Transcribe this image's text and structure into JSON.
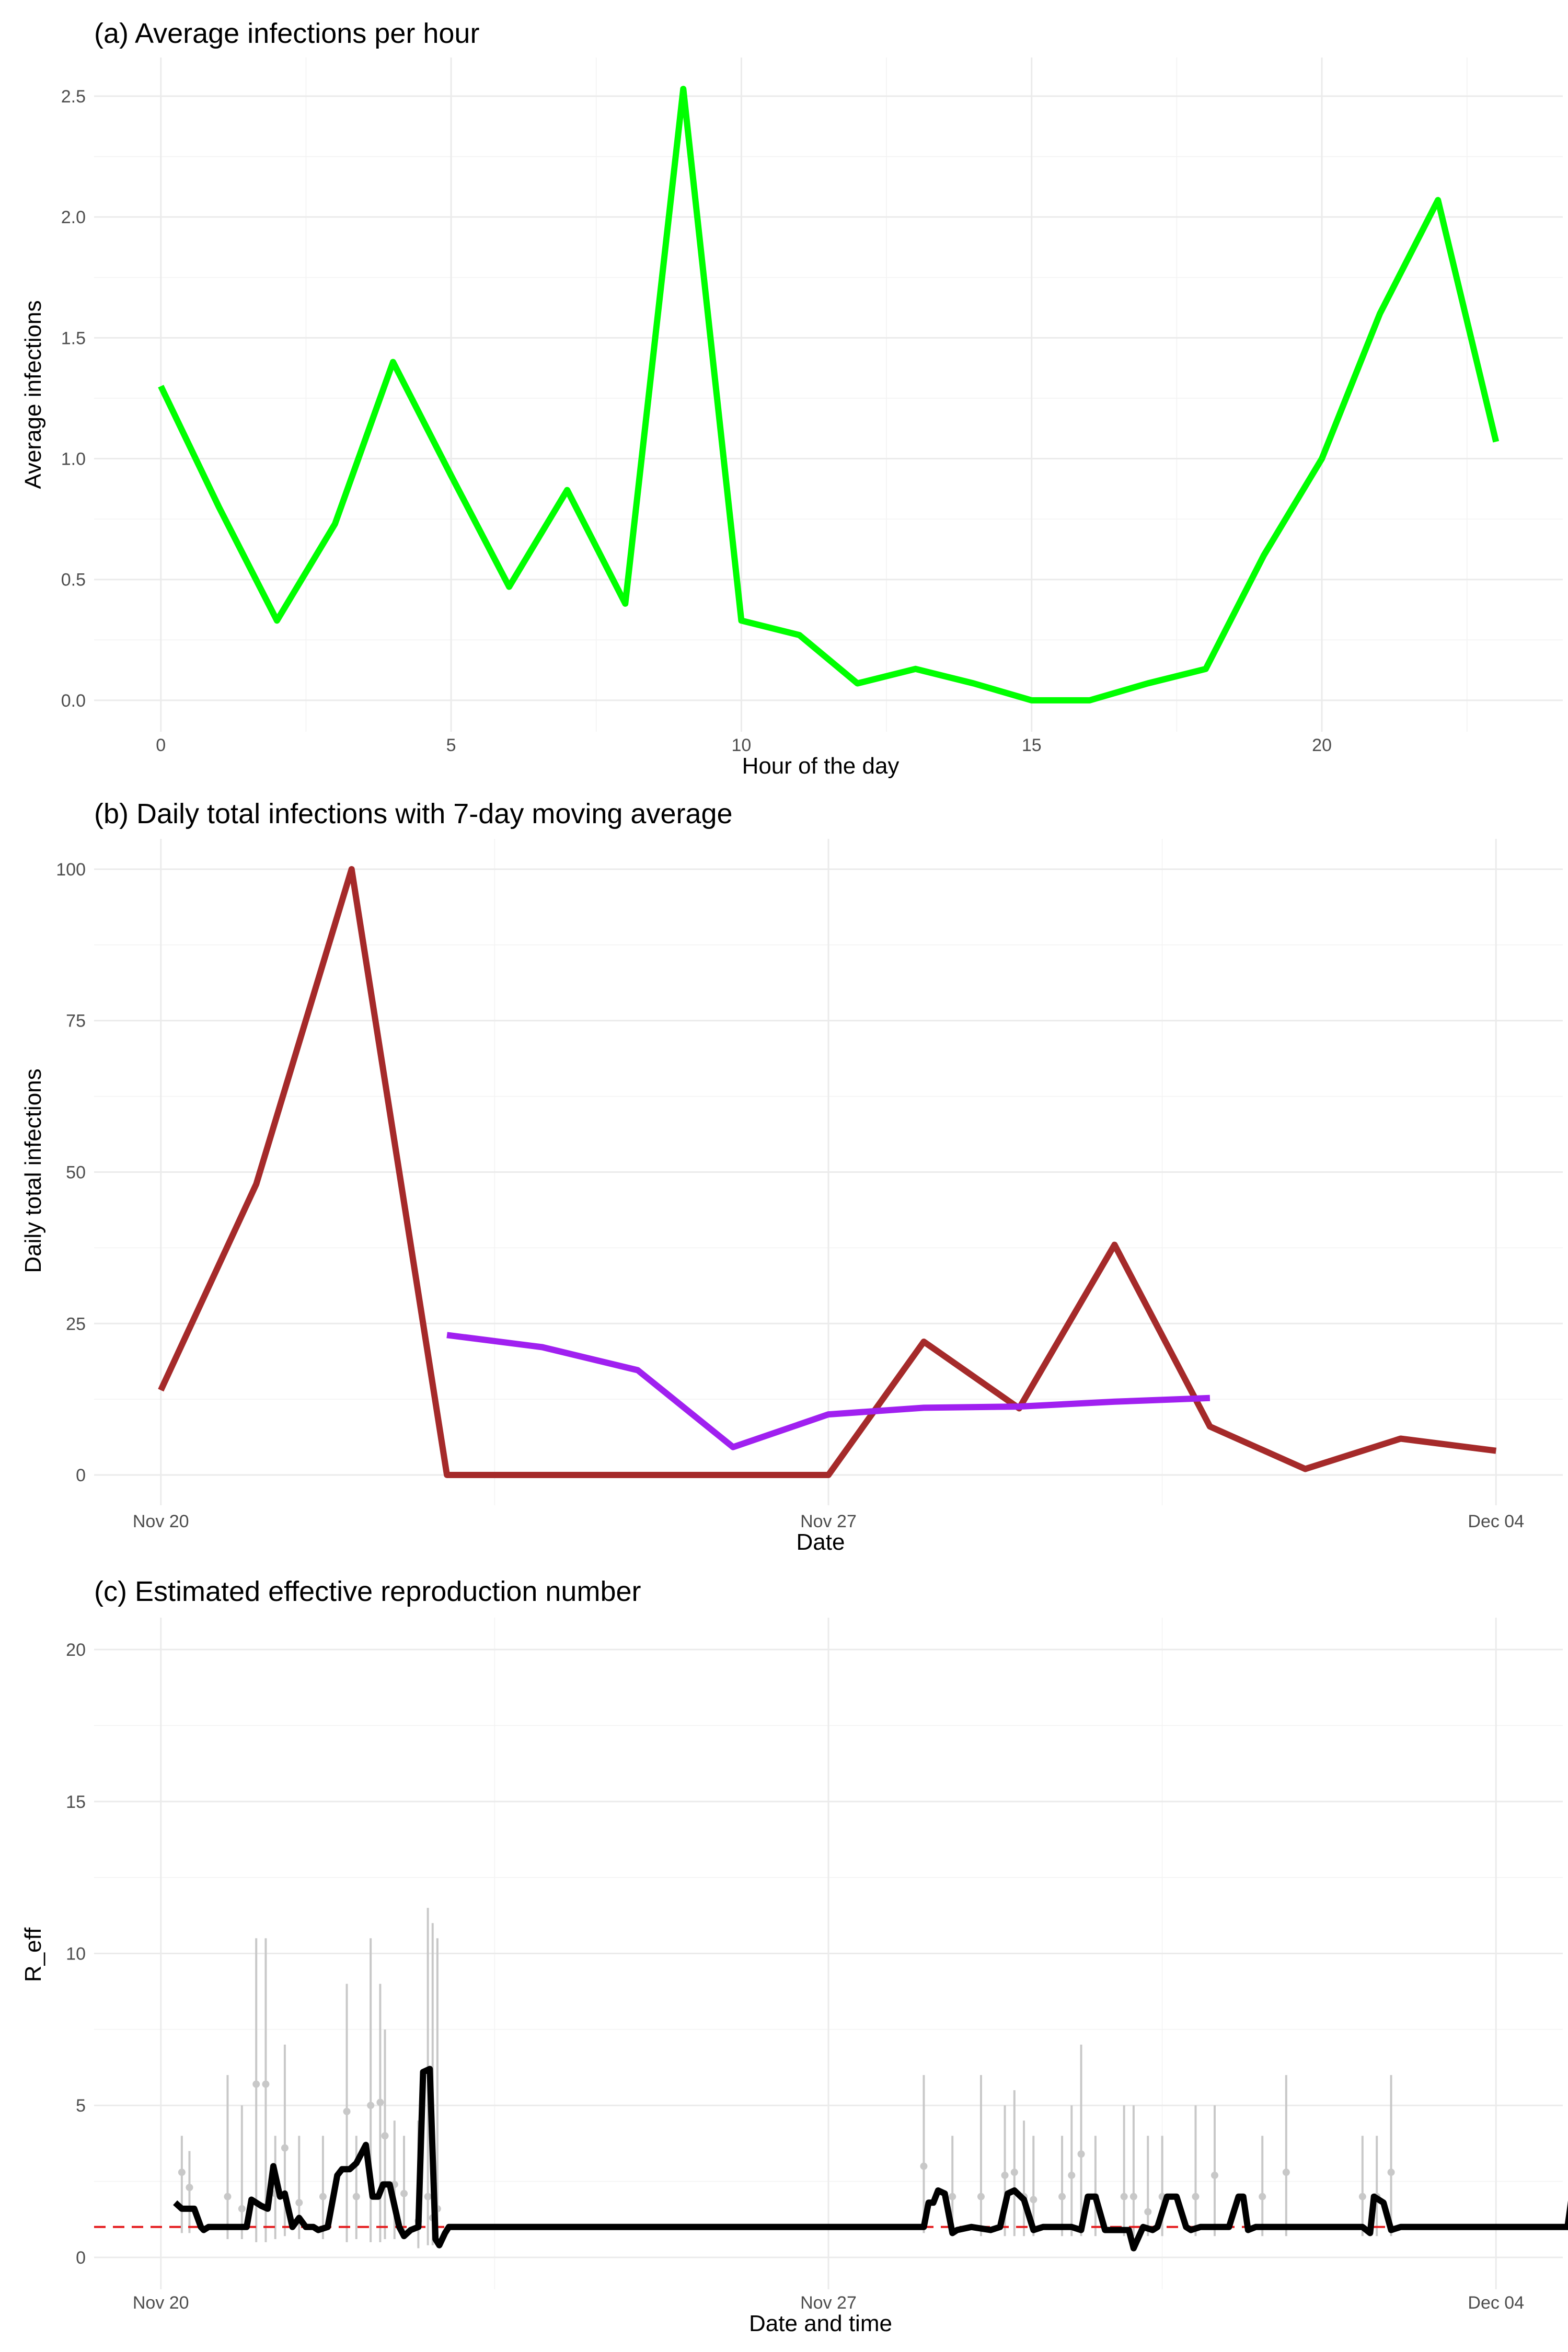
{
  "chart_data": [
    {
      "type": "line",
      "title": "(a) Average infections per hour",
      "xlabel": "Hour of the day",
      "ylabel": "Average infections",
      "xlim": [
        -1.15,
        24.15
      ],
      "ylim": [
        -0.13,
        2.66
      ],
      "xticks": [
        0,
        5,
        10,
        15,
        20
      ],
      "yticks": [
        0,
        0.5,
        1,
        1.5,
        2,
        2.5
      ],
      "ytick_labels": [
        "0.0",
        "0.5",
        "1.0",
        "1.5",
        "2.0",
        "2.5"
      ],
      "grid": true,
      "series": [
        {
          "color": "#00ff00",
          "x": [
            0,
            1,
            2,
            3,
            4,
            5,
            6,
            7,
            8,
            9,
            10,
            11,
            12,
            13,
            14,
            15,
            16,
            17,
            18,
            19,
            20,
            21,
            22,
            23
          ],
          "y": [
            1.3,
            0.8,
            0.33,
            0.73,
            1.4,
            0.93,
            0.47,
            0.87,
            0.4,
            2.53,
            0.33,
            0.27,
            0.07,
            0.13,
            0.07,
            0.0,
            0.0,
            0.07,
            0.13,
            0.6,
            1.0,
            1.6,
            2.07,
            1.07
          ]
        }
      ]
    },
    {
      "type": "line",
      "title": "(b) Daily total infections with 7-day moving average",
      "xlabel": "Date",
      "ylabel": "Daily total infections",
      "xlim": [
        -0.7,
        14.7
      ],
      "ylim": [
        -5,
        105
      ],
      "xticks": [
        0,
        7,
        14
      ],
      "xtick_labels": [
        "Nov 20",
        "Nov 27",
        "Dec 04"
      ],
      "yticks": [
        0,
        25,
        50,
        75,
        100
      ],
      "grid": true,
      "series": [
        {
          "color": "#a52a2a",
          "x": [
            0,
            1,
            2,
            3,
            4,
            5,
            6,
            7,
            8,
            9,
            10,
            11,
            12,
            13,
            14
          ],
          "y": [
            14,
            48,
            100,
            0,
            0,
            0,
            0,
            0,
            22,
            11,
            38,
            8,
            1,
            6,
            4
          ]
        },
        {
          "color": "#a020f0",
          "x": [
            3,
            4,
            5,
            6,
            7,
            8,
            9,
            10,
            11
          ],
          "y": [
            23.1,
            21.1,
            17.3,
            4.6,
            10.0,
            11.1,
            11.3,
            12.1,
            12.7
          ]
        }
      ]
    },
    {
      "type": "line",
      "title": "(c) Estimated effective reproduction number",
      "xlabel": "Date and time",
      "ylabel": "R_eff",
      "xlim": [
        -0.7,
        14.7
      ],
      "ylim": [
        -1.05,
        21.05
      ],
      "xticks": [
        0,
        7,
        14
      ],
      "xtick_labels": [
        "Nov 20",
        "Nov 27",
        "Dec 04"
      ],
      "yticks": [
        0,
        5,
        10,
        15,
        20
      ],
      "grid": true,
      "reference_line": {
        "y": 1,
        "color": "#e41a1c",
        "style": "dashed"
      },
      "point_estimates": {
        "color": "#c8c8c8",
        "x": [
          0.22,
          0.3,
          0.7,
          0.85,
          1.0,
          1.1,
          1.2,
          1.3,
          1.45,
          1.7,
          1.95,
          2.05,
          2.2,
          2.3,
          2.35,
          2.45,
          2.55,
          2.7,
          2.8,
          2.85,
          2.9,
          8.0,
          8.3,
          8.6,
          8.85,
          8.95,
          9.05,
          9.15,
          9.45,
          9.55,
          9.65,
          9.8,
          10.1,
          10.2,
          10.35,
          10.5,
          10.85,
          11.05,
          11.55,
          11.8,
          12.6,
          12.75,
          12.9,
          14.8
        ],
        "y": [
          2.8,
          2.3,
          2.0,
          1.6,
          5.7,
          5.7,
          2.1,
          3.6,
          1.8,
          2.0,
          4.8,
          2.0,
          5.0,
          5.1,
          4.0,
          2.4,
          2.1,
          1.2,
          2.0,
          1.3,
          1.6,
          3.0,
          2.0,
          2.0,
          2.7,
          2.8,
          2.0,
          1.9,
          2.0,
          2.7,
          3.4,
          2.0,
          2.0,
          2.0,
          1.5,
          2.0,
          2.0,
          2.7,
          2.0,
          2.8,
          2.0,
          2.0,
          2.8,
          3.0
        ],
        "upper": [
          4.0,
          3.5,
          6.0,
          5.0,
          10.5,
          10.5,
          4.0,
          7.0,
          4.0,
          4.0,
          9.0,
          4.0,
          10.5,
          9.0,
          7.5,
          4.5,
          4.0,
          4.5,
          11.5,
          11.0,
          10.5,
          6.0,
          4.0,
          6.0,
          5.0,
          5.5,
          4.5,
          4.0,
          4.0,
          5.0,
          7.0,
          4.0,
          5.0,
          5.0,
          4.0,
          4.0,
          5.0,
          5.0,
          4.0,
          6.0,
          4.0,
          4.0,
          6.0,
          6.0
        ],
        "lower": [
          0.8,
          0.8,
          0.6,
          0.6,
          0.5,
          0.5,
          0.6,
          0.7,
          0.6,
          0.6,
          0.5,
          0.6,
          0.5,
          0.5,
          0.6,
          0.6,
          0.6,
          0.3,
          0.4,
          0.4,
          0.4,
          0.8,
          0.7,
          0.7,
          0.7,
          0.7,
          0.7,
          0.7,
          0.7,
          0.7,
          0.7,
          0.7,
          0.7,
          0.7,
          0.7,
          0.7,
          0.7,
          0.7,
          0.7,
          0.7,
          0.7,
          0.7,
          0.7,
          0.8
        ]
      },
      "series": [
        {
          "color": "#000000",
          "x": [
            0.15,
            0.22,
            0.35,
            0.42,
            0.45,
            0.5,
            0.6,
            0.9,
            0.95,
            1.05,
            1.12,
            1.18,
            1.25,
            1.3,
            1.38,
            1.45,
            1.52,
            1.6,
            1.65,
            1.75,
            1.85,
            1.9,
            1.98,
            2.05,
            2.15,
            2.22,
            2.28,
            2.33,
            2.4,
            2.5,
            2.55,
            2.62,
            2.7,
            2.75,
            2.82,
            2.88,
            2.92,
            2.98,
            3.02,
            3.15,
            3.2,
            8.0,
            8.05,
            8.1,
            8.15,
            8.22,
            8.3,
            8.35,
            8.5,
            8.7,
            8.8,
            8.88,
            8.95,
            9.05,
            9.15,
            9.25,
            9.4,
            9.55,
            9.65,
            9.72,
            9.8,
            9.9,
            10.05,
            10.15,
            10.2,
            10.3,
            10.4,
            10.45,
            10.55,
            10.65,
            10.75,
            10.8,
            10.9,
            11.05,
            11.2,
            11.3,
            11.35,
            11.4,
            11.48,
            11.55,
            12.5,
            12.6,
            12.68,
            12.72,
            12.82,
            12.9,
            13.0,
            14.75,
            14.82
          ],
          "y": [
            1.8,
            1.6,
            1.6,
            1.0,
            0.9,
            1.0,
            1.0,
            1.0,
            1.9,
            1.7,
            1.6,
            3.0,
            2.0,
            2.1,
            1.0,
            1.3,
            1.0,
            1.0,
            0.9,
            1.0,
            2.7,
            2.9,
            2.9,
            3.1,
            3.7,
            2.0,
            2.0,
            2.4,
            2.4,
            1.0,
            0.7,
            0.9,
            1.0,
            6.1,
            6.2,
            0.6,
            0.4,
            0.8,
            1.0,
            1.0,
            1.0,
            1.0,
            1.8,
            1.8,
            2.2,
            2.1,
            0.8,
            0.9,
            1.0,
            0.9,
            1.0,
            2.1,
            2.2,
            1.9,
            0.9,
            1.0,
            1.0,
            1.0,
            0.9,
            2.0,
            2.0,
            0.9,
            0.9,
            0.9,
            0.3,
            1.0,
            0.9,
            1.0,
            2.0,
            2.0,
            1.0,
            0.9,
            1.0,
            1.0,
            1.0,
            2.0,
            2.0,
            0.9,
            1.0,
            1.0,
            1.0,
            1.0,
            0.8,
            2.0,
            1.8,
            0.9,
            1.0,
            1.0,
            2.6
          ]
        }
      ]
    }
  ]
}
